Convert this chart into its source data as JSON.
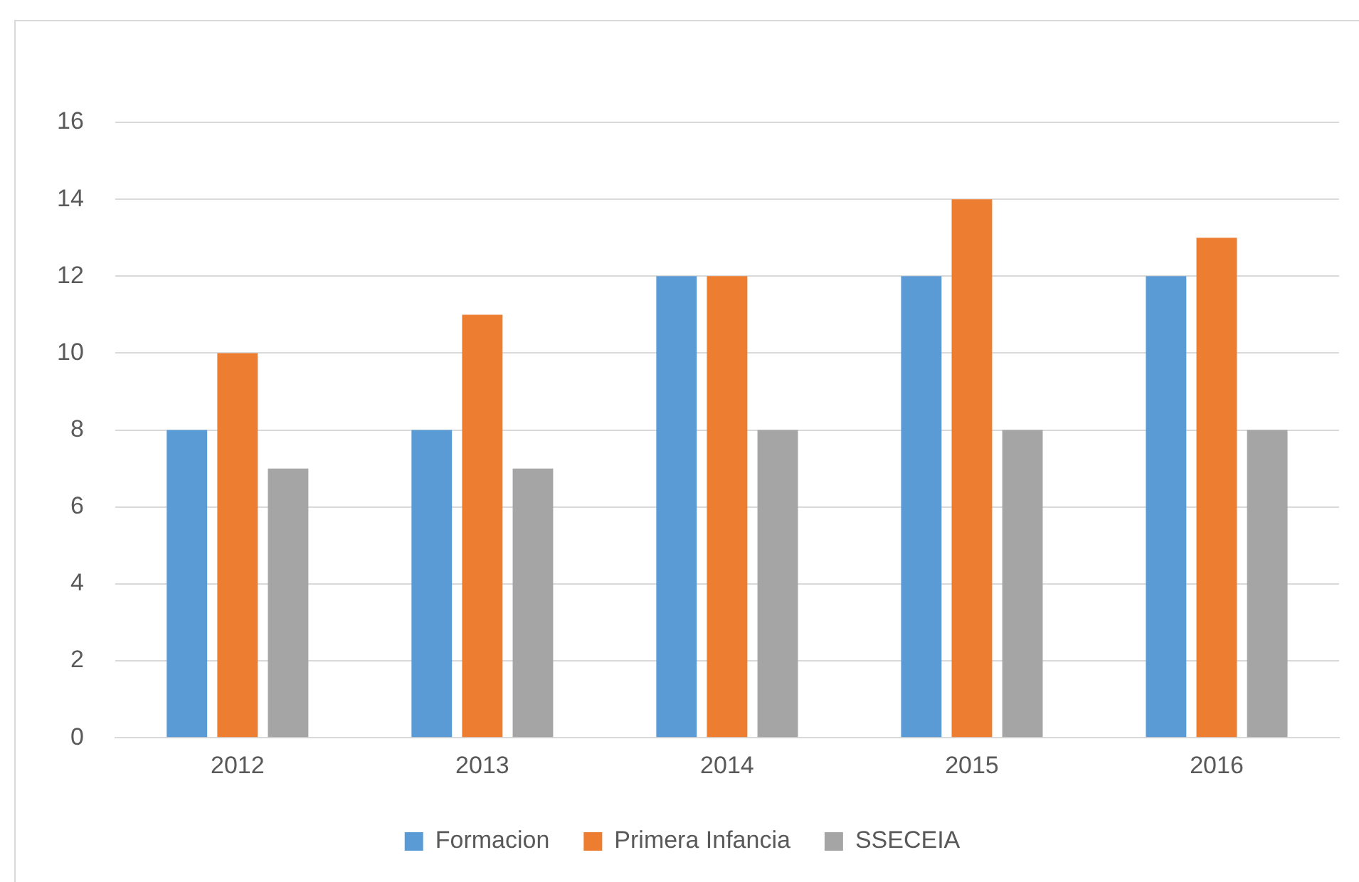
{
  "chart_data": {
    "type": "bar",
    "categories": [
      "2012",
      "2013",
      "2014",
      "2015",
      "2016"
    ],
    "series": [
      {
        "name": "Formacion",
        "color": "#5b9bd5",
        "values": [
          8,
          8,
          12,
          12,
          12
        ]
      },
      {
        "name": "Primera Infancia",
        "color": "#ed7d31",
        "values": [
          10,
          11,
          12,
          14,
          13
        ]
      },
      {
        "name": "SSECEIA",
        "color": "#a5a5a5",
        "values": [
          7,
          7,
          8,
          8,
          8
        ]
      }
    ],
    "ylim": [
      0,
      16
    ],
    "yticks": [
      0,
      2,
      4,
      6,
      8,
      10,
      12,
      14,
      16
    ],
    "grid": "y",
    "legend": "bottom"
  }
}
